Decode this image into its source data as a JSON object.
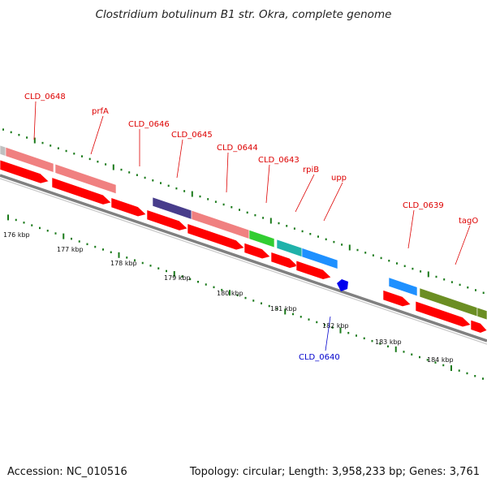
{
  "header": {
    "title": "Clostridium botulinum B1 str. Okra, complete genome"
  },
  "footer": {
    "accession": "Accession: NC_010516",
    "topology": "Topology: circular; Length: 3,958,233 bp; Genes: 3,761"
  },
  "colors": {
    "label_top": "#dd0000",
    "label_bottom": "#0000cc",
    "cds_arrow": "#ff0000",
    "backbone": "#808080",
    "tick": "#1a7a1a"
  },
  "scale_labels": [
    "176 kbp",
    "177 kbp",
    "178 kbp",
    "179 kbp",
    "180 kbp",
    "181 kbp",
    "182 kbp",
    "183 kbp",
    "184 kbp"
  ],
  "genes_top": [
    {
      "name": "CLD_0648",
      "color": "#f08080"
    },
    {
      "name": "prfA",
      "color": "#f08080"
    },
    {
      "name": "CLD_0646",
      "color": "#f08080"
    },
    {
      "name": "CLD_0645",
      "color": "#483d8b"
    },
    {
      "name": "CLD_0644",
      "color": "#f08080"
    },
    {
      "name": "CLD_0643",
      "color": "#32cd32"
    },
    {
      "name": "rpiB",
      "color": "#20b2aa"
    },
    {
      "name": "upp",
      "color": "#1e90ff"
    },
    {
      "name": "CLD_0639",
      "color": "#1e90ff"
    },
    {
      "name": "tagO",
      "color": "#6b8e23"
    }
  ],
  "genes_bottom": [
    {
      "name": "CLD_0640",
      "color": "#0000ee"
    }
  ]
}
